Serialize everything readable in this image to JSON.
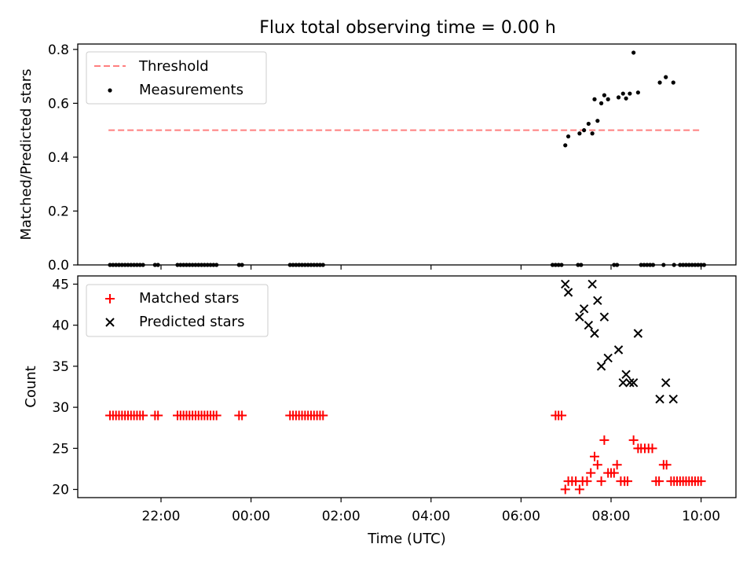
{
  "title": "Flux total observing time = 0.00 h",
  "chart_data": [
    {
      "type": "scatter",
      "ylabel": "Matched/Predicted stars",
      "ylim": [
        0,
        0.82
      ],
      "yticks": [
        0.0,
        0.2,
        0.4,
        0.6,
        0.8
      ],
      "ytick_labels": [
        "0.0",
        "0.2",
        "0.4",
        "0.6",
        "0.8"
      ],
      "legend_position": "top-left",
      "threshold": {
        "name": "Threshold",
        "value": 0.5,
        "x_start": "20:50",
        "x_end": "10:00",
        "color": "#ff7f7f",
        "style": "dashed"
      },
      "measurements": {
        "name": "Measurements",
        "color": "#000000",
        "points": [
          [
            "20:52",
            0
          ],
          [
            "20:56",
            0
          ],
          [
            "21:00",
            0
          ],
          [
            "21:04",
            0
          ],
          [
            "21:08",
            0
          ],
          [
            "21:12",
            0
          ],
          [
            "21:16",
            0
          ],
          [
            "21:20",
            0
          ],
          [
            "21:24",
            0
          ],
          [
            "21:28",
            0
          ],
          [
            "21:32",
            0
          ],
          [
            "21:36",
            0
          ],
          [
            "21:52",
            0
          ],
          [
            "21:56",
            0
          ],
          [
            "22:22",
            0
          ],
          [
            "22:26",
            0
          ],
          [
            "22:30",
            0
          ],
          [
            "22:34",
            0
          ],
          [
            "22:38",
            0
          ],
          [
            "22:42",
            0
          ],
          [
            "22:46",
            0
          ],
          [
            "22:50",
            0
          ],
          [
            "22:54",
            0
          ],
          [
            "22:58",
            0
          ],
          [
            "23:02",
            0
          ],
          [
            "23:06",
            0
          ],
          [
            "23:10",
            0
          ],
          [
            "23:14",
            0
          ],
          [
            "23:44",
            0
          ],
          [
            "23:48",
            0
          ],
          [
            "00:52",
            0
          ],
          [
            "00:56",
            0
          ],
          [
            "01:00",
            0
          ],
          [
            "01:04",
            0
          ],
          [
            "01:08",
            0
          ],
          [
            "01:12",
            0
          ],
          [
            "01:16",
            0
          ],
          [
            "01:20",
            0
          ],
          [
            "01:24",
            0
          ],
          [
            "01:28",
            0
          ],
          [
            "01:32",
            0
          ],
          [
            "01:36",
            0
          ],
          [
            "06:42",
            0
          ],
          [
            "06:46",
            0
          ],
          [
            "06:50",
            0
          ],
          [
            "06:54",
            0
          ],
          [
            "07:16",
            0
          ],
          [
            "07:20",
            0
          ],
          [
            "08:04",
            0
          ],
          [
            "08:08",
            0
          ],
          [
            "08:40",
            0
          ],
          [
            "08:44",
            0
          ],
          [
            "08:48",
            0
          ],
          [
            "08:52",
            0
          ],
          [
            "08:56",
            0
          ],
          [
            "09:10",
            0
          ],
          [
            "09:24",
            0
          ],
          [
            "09:32",
            0
          ],
          [
            "09:36",
            0
          ],
          [
            "09:40",
            0
          ],
          [
            "09:44",
            0
          ],
          [
            "09:48",
            0
          ],
          [
            "09:52",
            0
          ],
          [
            "09:56",
            0
          ],
          [
            "10:00",
            0
          ],
          [
            "10:04",
            0
          ],
          [
            "06:59",
            0.444
          ],
          [
            "07:03",
            0.477
          ],
          [
            "07:18",
            0.488
          ],
          [
            "07:24",
            0.5
          ],
          [
            "07:30",
            0.524
          ],
          [
            "07:35",
            0.488
          ],
          [
            "07:38",
            0.615
          ],
          [
            "07:42",
            0.535
          ],
          [
            "07:47",
            0.6
          ],
          [
            "07:51",
            0.63
          ],
          [
            "07:56",
            0.615
          ],
          [
            "08:10",
            0.622
          ],
          [
            "08:16",
            0.636
          ],
          [
            "08:20",
            0.618
          ],
          [
            "08:25",
            0.636
          ],
          [
            "08:30",
            0.788
          ],
          [
            "08:36",
            0.64
          ],
          [
            "09:05",
            0.677
          ],
          [
            "09:13",
            0.697
          ],
          [
            "09:23",
            0.677
          ]
        ]
      }
    },
    {
      "type": "scatter",
      "xlabel": "Time (UTC)",
      "ylabel": "Count",
      "ylim": [
        19,
        46
      ],
      "yticks": [
        20,
        25,
        30,
        35,
        40,
        45
      ],
      "ytick_labels": [
        "20",
        "25",
        "30",
        "35",
        "40",
        "45"
      ],
      "xtick_labels": [
        "22:00",
        "00:00",
        "02:00",
        "04:00",
        "06:00",
        "08:00",
        "10:00"
      ],
      "legend_position": "top-left",
      "series": [
        {
          "name": "Matched stars",
          "color": "#ff0000",
          "marker": "plus",
          "points": [
            [
              "20:52",
              29
            ],
            [
              "20:56",
              29
            ],
            [
              "21:00",
              29
            ],
            [
              "21:04",
              29
            ],
            [
              "21:08",
              29
            ],
            [
              "21:12",
              29
            ],
            [
              "21:16",
              29
            ],
            [
              "21:20",
              29
            ],
            [
              "21:24",
              29
            ],
            [
              "21:28",
              29
            ],
            [
              "21:32",
              29
            ],
            [
              "21:36",
              29
            ],
            [
              "21:52",
              29
            ],
            [
              "21:56",
              29
            ],
            [
              "22:22",
              29
            ],
            [
              "22:26",
              29
            ],
            [
              "22:30",
              29
            ],
            [
              "22:34",
              29
            ],
            [
              "22:38",
              29
            ],
            [
              "22:42",
              29
            ],
            [
              "22:46",
              29
            ],
            [
              "22:50",
              29
            ],
            [
              "22:54",
              29
            ],
            [
              "22:58",
              29
            ],
            [
              "23:02",
              29
            ],
            [
              "23:06",
              29
            ],
            [
              "23:10",
              29
            ],
            [
              "23:14",
              29
            ],
            [
              "23:44",
              29
            ],
            [
              "23:48",
              29
            ],
            [
              "00:52",
              29
            ],
            [
              "00:56",
              29
            ],
            [
              "01:00",
              29
            ],
            [
              "01:04",
              29
            ],
            [
              "01:08",
              29
            ],
            [
              "01:12",
              29
            ],
            [
              "01:16",
              29
            ],
            [
              "01:20",
              29
            ],
            [
              "01:24",
              29
            ],
            [
              "01:28",
              29
            ],
            [
              "01:32",
              29
            ],
            [
              "01:36",
              29
            ],
            [
              "06:46",
              29
            ],
            [
              "06:50",
              29
            ],
            [
              "06:54",
              29
            ],
            [
              "06:59",
              20
            ],
            [
              "07:03",
              21
            ],
            [
              "07:08",
              21
            ],
            [
              "07:13",
              21
            ],
            [
              "07:18",
              20
            ],
            [
              "07:22",
              21
            ],
            [
              "07:28",
              21
            ],
            [
              "07:33",
              22
            ],
            [
              "07:38",
              24
            ],
            [
              "07:42",
              23
            ],
            [
              "07:47",
              21
            ],
            [
              "07:51",
              26
            ],
            [
              "07:56",
              22
            ],
            [
              "08:00",
              22
            ],
            [
              "08:04",
              22
            ],
            [
              "08:08",
              23
            ],
            [
              "08:13",
              21
            ],
            [
              "08:18",
              21
            ],
            [
              "08:22",
              21
            ],
            [
              "08:30",
              26
            ],
            [
              "08:36",
              25
            ],
            [
              "08:40",
              25
            ],
            [
              "08:45",
              25
            ],
            [
              "08:50",
              25
            ],
            [
              "08:55",
              25
            ],
            [
              "09:00",
              21
            ],
            [
              "09:04",
              21
            ],
            [
              "09:10",
              23
            ],
            [
              "09:14",
              23
            ],
            [
              "09:20",
              21
            ],
            [
              "09:24",
              21
            ],
            [
              "09:28",
              21
            ],
            [
              "09:32",
              21
            ],
            [
              "09:36",
              21
            ],
            [
              "09:40",
              21
            ],
            [
              "09:44",
              21
            ],
            [
              "09:48",
              21
            ],
            [
              "09:52",
              21
            ],
            [
              "09:56",
              21
            ],
            [
              "10:00",
              21
            ]
          ]
        },
        {
          "name": "Predicted stars",
          "color": "#000000",
          "marker": "x",
          "points": [
            [
              "06:59",
              45
            ],
            [
              "07:03",
              44
            ],
            [
              "07:18",
              41
            ],
            [
              "07:24",
              42
            ],
            [
              "07:30",
              40
            ],
            [
              "07:35",
              45
            ],
            [
              "07:38",
              39
            ],
            [
              "07:42",
              43
            ],
            [
              "07:47",
              35
            ],
            [
              "07:51",
              41
            ],
            [
              "07:56",
              36
            ],
            [
              "08:10",
              37
            ],
            [
              "08:16",
              33
            ],
            [
              "08:20",
              34
            ],
            [
              "08:25",
              33
            ],
            [
              "08:30",
              33
            ],
            [
              "08:36",
              39
            ],
            [
              "09:05",
              31
            ],
            [
              "09:13",
              33
            ],
            [
              "09:23",
              31
            ]
          ]
        }
      ]
    }
  ]
}
